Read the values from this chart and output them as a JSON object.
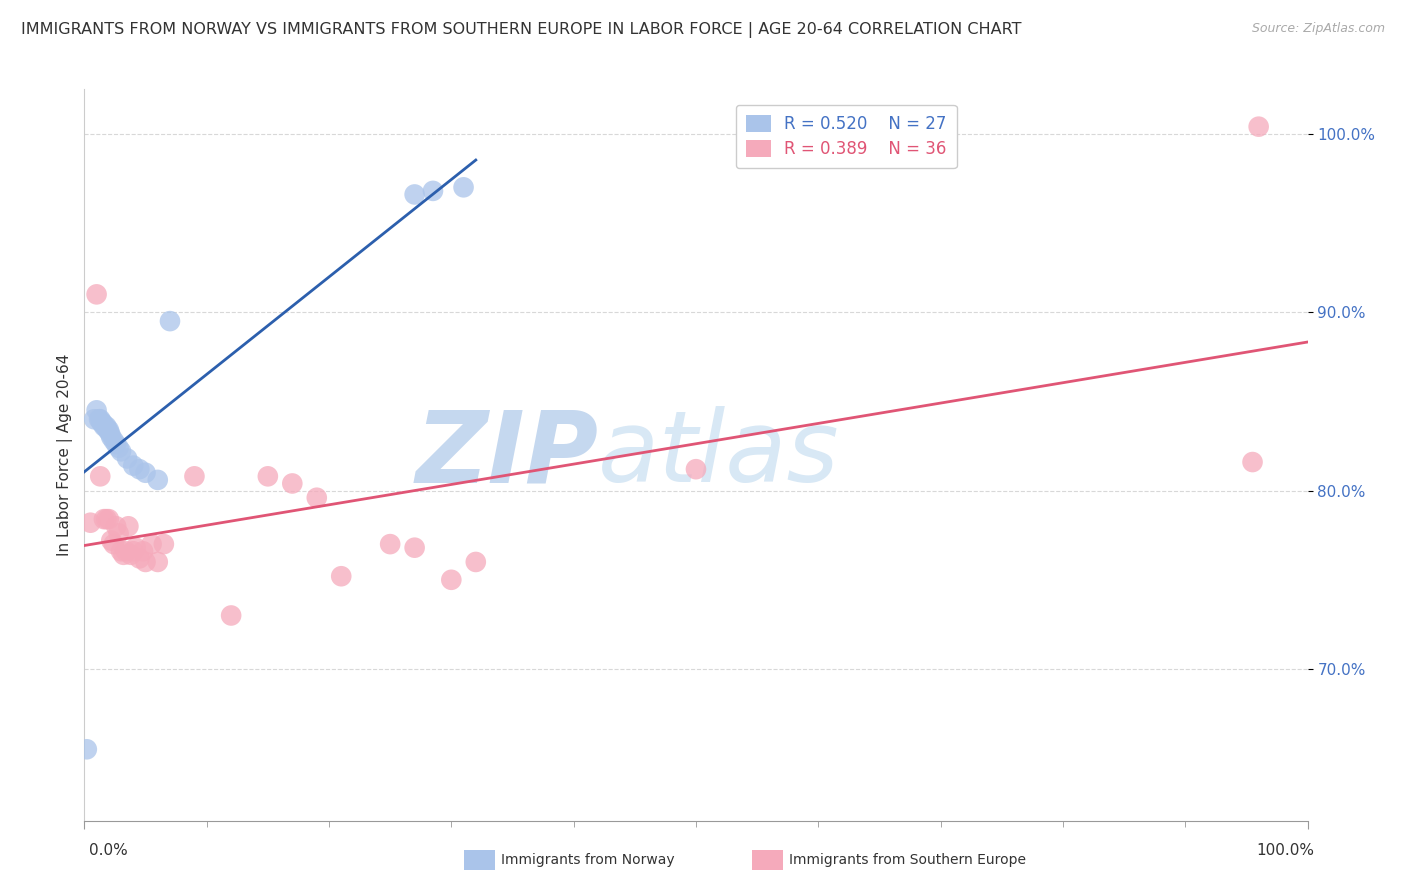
{
  "title": "IMMIGRANTS FROM NORWAY VS IMMIGRANTS FROM SOUTHERN EUROPE IN LABOR FORCE | AGE 20-64 CORRELATION CHART",
  "source": "Source: ZipAtlas.com",
  "ylabel": "In Labor Force | Age 20-64",
  "xlim": [
    0.0,
    1.0
  ],
  "ylim": [
    0.615,
    1.025
  ],
  "yticks": [
    0.7,
    0.8,
    0.9,
    1.0
  ],
  "ytick_labels": [
    "70.0%",
    "80.0%",
    "90.0%",
    "100.0%"
  ],
  "norway_R": 0.52,
  "norway_N": 27,
  "southern_R": 0.389,
  "southern_N": 36,
  "norway_color": "#aac4ea",
  "southern_color": "#f5aabb",
  "norway_line_color": "#2c5fad",
  "southern_line_color": "#e05575",
  "watermark_zip": "ZIP",
  "watermark_atlas": "atlas",
  "watermark_color": "#d8e6f5",
  "background_color": "#ffffff",
  "grid_color": "#d8d8d8",
  "title_fontsize": 11.5,
  "axis_label_fontsize": 11,
  "tick_fontsize": 11,
  "legend_fontsize": 12,
  "norway_x": [
    0.002,
    0.008,
    0.01,
    0.012,
    0.013,
    0.014,
    0.015,
    0.016,
    0.017,
    0.018,
    0.019,
    0.02,
    0.021,
    0.022,
    0.024,
    0.026,
    0.028,
    0.03,
    0.035,
    0.04,
    0.045,
    0.05,
    0.06,
    0.07,
    0.27,
    0.285,
    0.31
  ],
  "norway_y": [
    0.655,
    0.84,
    0.845,
    0.84,
    0.84,
    0.838,
    0.838,
    0.836,
    0.836,
    0.836,
    0.834,
    0.834,
    0.832,
    0.83,
    0.828,
    0.826,
    0.824,
    0.822,
    0.818,
    0.814,
    0.812,
    0.81,
    0.806,
    0.895,
    0.966,
    0.968,
    0.97
  ],
  "southern_x": [
    0.005,
    0.01,
    0.013,
    0.016,
    0.018,
    0.02,
    0.022,
    0.024,
    0.026,
    0.028,
    0.03,
    0.032,
    0.034,
    0.036,
    0.038,
    0.04,
    0.042,
    0.045,
    0.048,
    0.05,
    0.055,
    0.06,
    0.065,
    0.09,
    0.12,
    0.15,
    0.17,
    0.19,
    0.21,
    0.25,
    0.27,
    0.3,
    0.32,
    0.5,
    0.955,
    0.96
  ],
  "southern_y": [
    0.782,
    0.91,
    0.808,
    0.784,
    0.784,
    0.784,
    0.772,
    0.77,
    0.78,
    0.776,
    0.766,
    0.764,
    0.766,
    0.78,
    0.764,
    0.766,
    0.768,
    0.762,
    0.766,
    0.76,
    0.77,
    0.76,
    0.77,
    0.808,
    0.73,
    0.808,
    0.804,
    0.796,
    0.752,
    0.77,
    0.768,
    0.75,
    0.76,
    0.812,
    0.816,
    1.004
  ],
  "norway_line_xrange": [
    0.0,
    0.32
  ],
  "southern_line_xrange": [
    0.0,
    1.0
  ]
}
